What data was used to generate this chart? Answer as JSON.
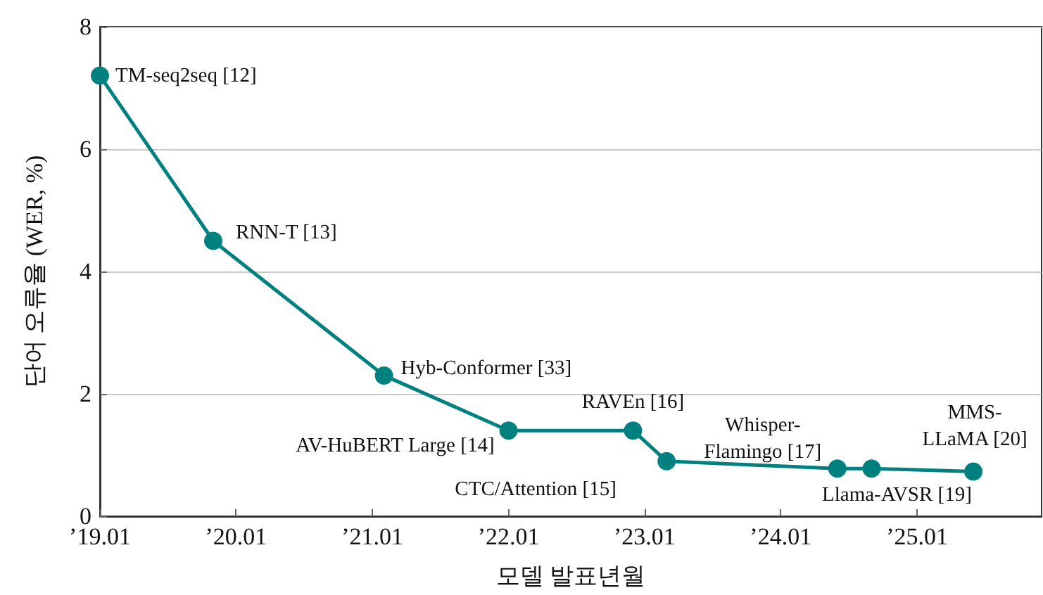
{
  "chart_data": {
    "type": "line",
    "xlabel": "모델 발표년월",
    "ylabel": "단어 오류율 (WER, %)",
    "x": [
      "2019-01",
      "2019-11",
      "2021-02",
      "2022-01",
      "2022-12",
      "2023-03",
      "2024-06",
      "2024-09",
      "2025-06"
    ],
    "series": [
      {
        "color": "#00807f",
        "values": [
          7.2,
          4.5,
          2.3,
          1.4,
          1.4,
          0.9,
          0.78,
          0.78,
          0.73
        ]
      }
    ],
    "xlim": [
      "2019-01",
      "2025-12"
    ],
    "xticks": [
      {
        "value": "2019-01",
        "label": "’19.01"
      },
      {
        "value": "2020-01",
        "label": "’20.01"
      },
      {
        "value": "2021-01",
        "label": "’21.01"
      },
      {
        "value": "2022-01",
        "label": "’22.01"
      },
      {
        "value": "2023-01",
        "label": "’23.01"
      },
      {
        "value": "2024-01",
        "label": "’24.01"
      },
      {
        "value": "2025-01",
        "label": "’25.01"
      }
    ],
    "ylim": [
      0,
      8
    ],
    "yticks": [
      0,
      2,
      4,
      6,
      8
    ],
    "grid": "y",
    "marker": "circle",
    "line_style": "solid",
    "annotations": [
      {
        "text": "TM-seq2seq [12]",
        "x": "2019-01",
        "y": 7.2
      },
      {
        "text": "RNN-T [13]",
        "x": "2019-11",
        "y": 4.5
      },
      {
        "text": "Hyb-Conformer [33]",
        "x": "2021-02",
        "y": 2.3
      },
      {
        "text": "AV-HuBERT Large [14]",
        "x": "2022-01",
        "y": 1.4
      },
      {
        "text": "RAVEn [16]",
        "x": "2022-12",
        "y": 1.4
      },
      {
        "text": "CTC/Attention [15]",
        "x": "2023-03",
        "y": 0.9
      },
      {
        "text": "Whisper-\nFlamingo [17]",
        "x": "2024-06",
        "y": 0.78
      },
      {
        "text": "Llama-AVSR [19]",
        "x": "2024-09",
        "y": 0.78
      },
      {
        "text": "MMS-\nLLaMA [20]",
        "x": "2025-06",
        "y": 0.73
      }
    ]
  }
}
